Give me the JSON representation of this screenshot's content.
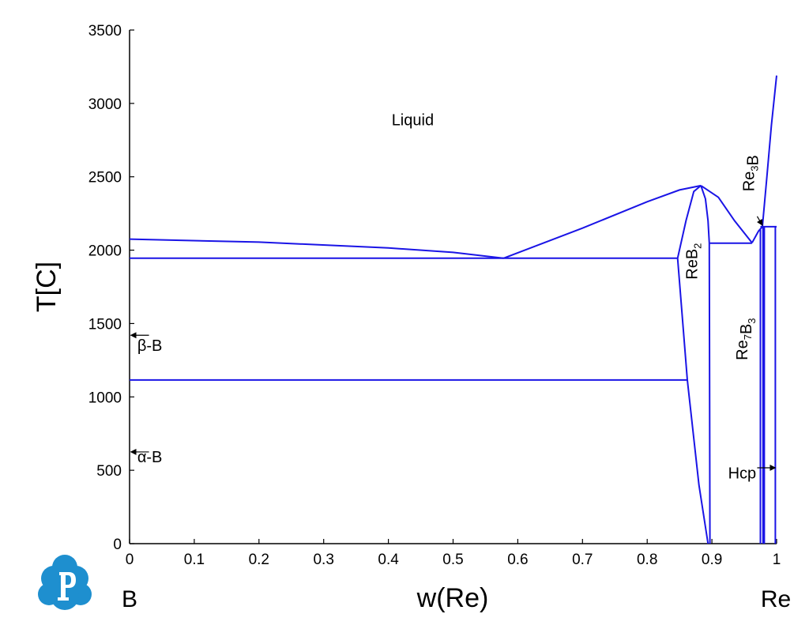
{
  "chart_data": {
    "type": "line",
    "title": "",
    "xlabel": "w(Re)",
    "ylabel": "T[C]",
    "xlim": [
      0,
      1
    ],
    "ylim": [
      0,
      3500
    ],
    "xticks": [
      "0",
      "0.1",
      "0.2",
      "0.3",
      "0.4",
      "0.5",
      "0.6",
      "0.7",
      "0.8",
      "0.9",
      "1"
    ],
    "yticks": [
      "0",
      "500",
      "1000",
      "1500",
      "2000",
      "2500",
      "3000",
      "3500"
    ],
    "left_component": "B",
    "right_component": "Re",
    "line_color": "#1a14e6",
    "series": [
      {
        "points": [
          [
            0,
            2075
          ],
          [
            0.2,
            2055
          ],
          [
            0.4,
            2015
          ],
          [
            0.5,
            1985
          ],
          [
            0.578,
            1945
          ]
        ]
      },
      {
        "points": [
          [
            0.578,
            1945
          ],
          [
            0.7,
            2150
          ],
          [
            0.8,
            2330
          ],
          [
            0.85,
            2410
          ],
          [
            0.883,
            2440
          ]
        ]
      },
      {
        "points": [
          [
            0.883,
            2440
          ],
          [
            0.91,
            2360
          ],
          [
            0.935,
            2200
          ],
          [
            0.962,
            2050
          ]
        ]
      },
      {
        "points": [
          [
            0.962,
            2050
          ],
          [
            0.967,
            2090
          ],
          [
            0.972,
            2130
          ],
          [
            0.978,
            2160
          ]
        ]
      },
      {
        "points": [
          [
            0.978,
            2160
          ],
          [
            0.985,
            2500
          ],
          [
            0.992,
            2850
          ],
          [
            1.0,
            3190
          ]
        ]
      },
      {
        "points": [
          [
            0,
            1945
          ],
          [
            0.847,
            1945
          ]
        ]
      },
      {
        "points": [
          [
            0,
            1115
          ],
          [
            0.862,
            1115
          ]
        ]
      },
      {
        "points": [
          [
            0.897,
            2048
          ],
          [
            0.962,
            2048
          ]
        ]
      },
      {
        "points": [
          [
            0.975,
            2160
          ],
          [
            1.0,
            2160
          ]
        ]
      },
      {
        "points": [
          [
            0.847,
            1945
          ],
          [
            0.86,
            2200
          ],
          [
            0.872,
            2400
          ],
          [
            0.883,
            2440
          ]
        ]
      },
      {
        "points": [
          [
            0.847,
            1945
          ],
          [
            0.862,
            1115
          ],
          [
            0.88,
            400
          ],
          [
            0.894,
            0
          ]
        ]
      },
      {
        "points": [
          [
            0.883,
            2440
          ],
          [
            0.89,
            2350
          ],
          [
            0.894,
            2200
          ],
          [
            0.896,
            2048
          ],
          [
            0.897,
            0
          ]
        ]
      },
      {
        "points": [
          [
            0.975,
            0
          ],
          [
            0.975,
            2140
          ]
        ]
      },
      {
        "points": [
          [
            0.979,
            0
          ],
          [
            0.979,
            2160
          ]
        ]
      },
      {
        "points": [
          [
            0.981,
            0
          ],
          [
            0.981,
            2160
          ]
        ]
      },
      {
        "points": [
          [
            0.998,
            0
          ],
          [
            0.998,
            2160
          ]
        ]
      }
    ],
    "annotations": [
      {
        "text": "Liquid",
        "x": 0.405,
        "y": 2850
      },
      {
        "text": "ReB",
        "sub": "2",
        "x": 0.877,
        "y": 1800,
        "rotate": -90
      },
      {
        "text": "Re",
        "sub": "7",
        "text2": "B",
        "sub2": "3",
        "x": 0.955,
        "y": 1250,
        "rotate": -90
      },
      {
        "text": "Re",
        "sub": "3",
        "text2": "B",
        "x": 0.965,
        "y": 2400,
        "rotate": -90
      },
      {
        "text": "β-B",
        "x": 0.012,
        "y": 1315
      },
      {
        "text": "α-B",
        "x": 0.012,
        "y": 555
      },
      {
        "text": "Hcp",
        "x": 0.925,
        "y": 445
      }
    ],
    "arrows": [
      {
        "from": [
          0.03,
          1420
        ],
        "to": [
          0.002,
          1420
        ]
      },
      {
        "from": [
          0.03,
          625
        ],
        "to": [
          0.002,
          625
        ]
      },
      {
        "from": [
          0.97,
          2230
        ],
        "to": [
          0.978,
          2170
        ]
      },
      {
        "from": [
          0.97,
          517
        ],
        "to": [
          0.998,
          517
        ]
      }
    ]
  }
}
